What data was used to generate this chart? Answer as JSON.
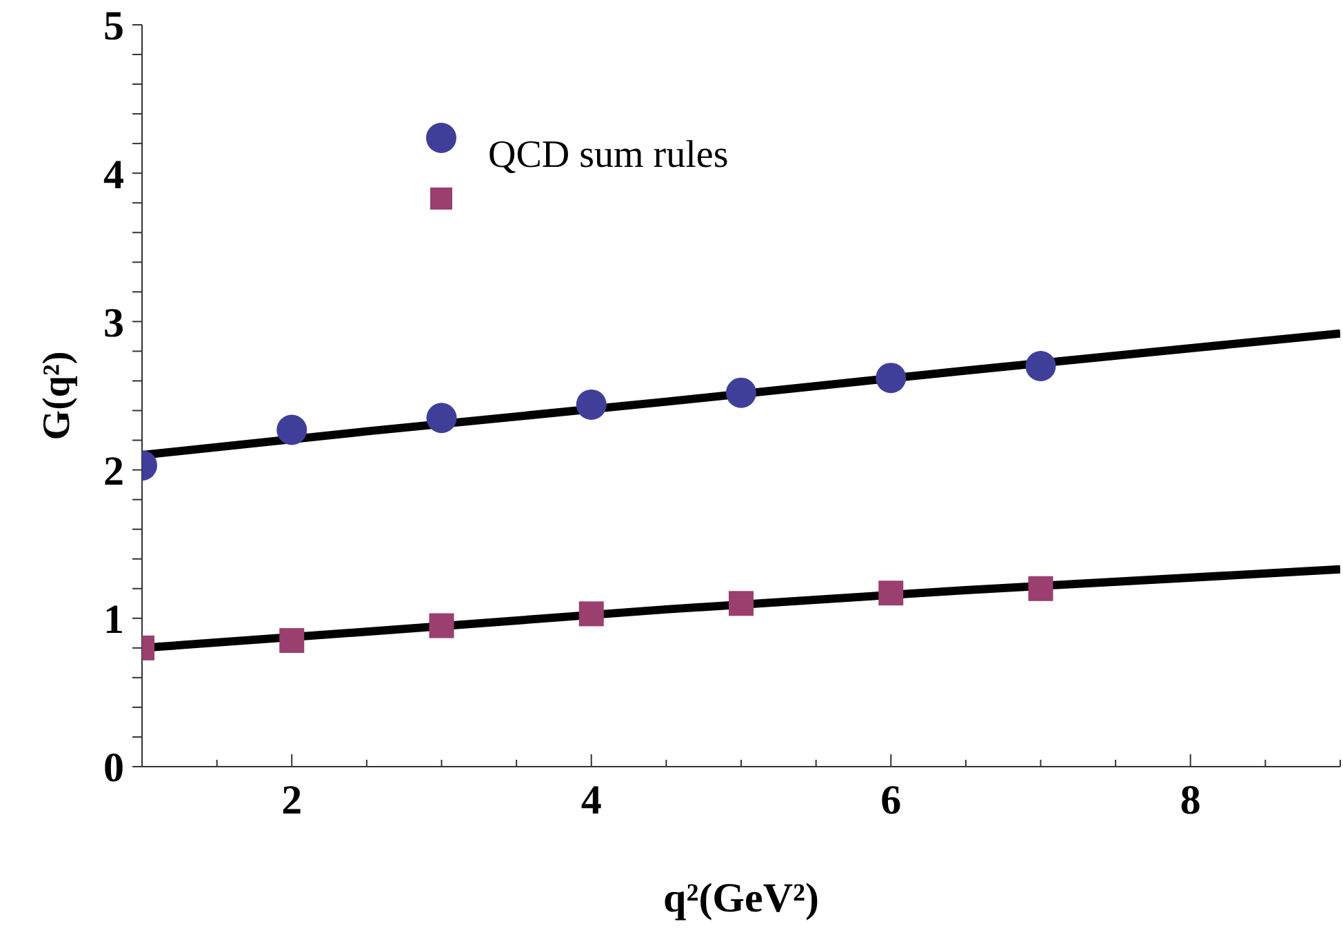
{
  "chart_data": {
    "type": "scatter",
    "xlabel": "q²(GeV²)",
    "ylabel": "G(q²)",
    "xlim": [
      1,
      9
    ],
    "ylim": [
      0,
      5
    ],
    "xticks": [
      {
        "value": 1,
        "label": null
      },
      {
        "value": 1.5,
        "label": null
      },
      2,
      {
        "value": 2.5,
        "label": null
      },
      {
        "value": 3,
        "label": null
      },
      {
        "value": 3.5,
        "label": null
      },
      4,
      {
        "value": 4.5,
        "label": null
      },
      {
        "value": 5,
        "label": null
      },
      {
        "value": 5.5,
        "label": null
      },
      6,
      {
        "value": 6.5,
        "label": null
      },
      {
        "value": 7,
        "label": null
      },
      {
        "value": 7.5,
        "label": null
      },
      8,
      {
        "value": 8.5,
        "label": null
      },
      {
        "value": 9,
        "label": null
      }
    ],
    "yticks": [
      0,
      {
        "value": 0.2,
        "label": null
      },
      {
        "value": 0.4,
        "label": null
      },
      {
        "value": 0.6,
        "label": null
      },
      {
        "value": 0.8,
        "label": null
      },
      1,
      {
        "value": 1.2,
        "label": null
      },
      {
        "value": 1.4,
        "label": null
      },
      {
        "value": 1.6,
        "label": null
      },
      {
        "value": 1.8,
        "label": null
      },
      2,
      {
        "value": 2.2,
        "label": null
      },
      {
        "value": 2.4,
        "label": null
      },
      {
        "value": 2.6,
        "label": null
      },
      {
        "value": 2.8,
        "label": null
      },
      3,
      {
        "value": 3.2,
        "label": null
      },
      {
        "value": 3.4,
        "label": null
      },
      {
        "value": 3.6,
        "label": null
      },
      {
        "value": 3.8,
        "label": null
      },
      4,
      {
        "value": 4.2,
        "label": null
      },
      {
        "value": 4.4,
        "label": null
      },
      {
        "value": 4.6,
        "label": null
      },
      {
        "value": 4.8,
        "label": null
      },
      5
    ],
    "grid": false,
    "legend": "top left",
    "series": [
      {
        "name": "QCD sum rules",
        "type": "scatter",
        "marker": "circle",
        "color": "#3f3f9a",
        "x": [
          1,
          2,
          3,
          4,
          5,
          6,
          7
        ],
        "values": [
          2.03,
          2.27,
          2.35,
          2.44,
          2.52,
          2.62,
          2.7
        ]
      },
      {
        "type": "scatter",
        "marker": "square",
        "color": "#9a3f6e",
        "x": [
          1,
          2,
          3,
          4,
          5,
          6,
          7
        ],
        "values": [
          0.8,
          0.85,
          0.95,
          1.03,
          1.1,
          1.17,
          1.2
        ]
      },
      {
        "type": "line",
        "marker": "none",
        "line_style": "solid",
        "color": "#000000",
        "x": [
          1,
          2.5,
          4.5,
          6.5,
          9
        ],
        "values": [
          2.1,
          2.26,
          2.46,
          2.67,
          2.92
        ]
      },
      {
        "type": "line",
        "marker": "none",
        "line_style": "solid",
        "color": "#000000",
        "x": [
          1,
          2.5,
          4.5,
          6.5,
          9
        ],
        "values": [
          0.8,
          0.91,
          1.06,
          1.19,
          1.33
        ]
      }
    ]
  }
}
